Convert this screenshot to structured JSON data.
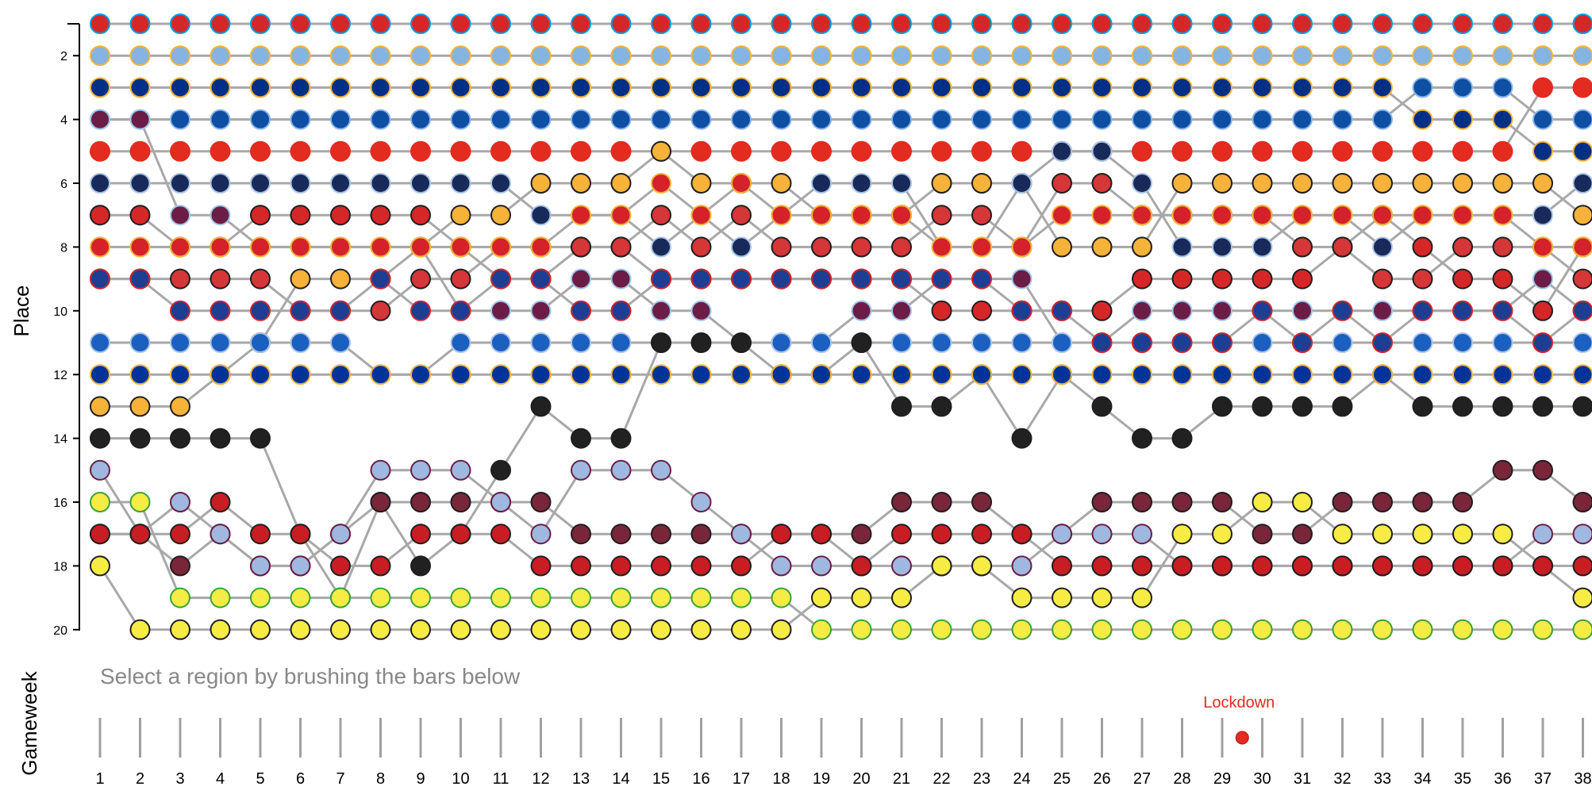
{
  "chart_data": {
    "type": "bump",
    "ylabel": "Place",
    "xlabel": "Gameweek",
    "y_ticks": [
      "2",
      "4",
      "6",
      "8",
      "10",
      "12",
      "14",
      "16",
      "18",
      "20"
    ],
    "ylim": [
      1,
      20
    ],
    "gameweeks": [
      "1",
      "2",
      "3",
      "4",
      "5",
      "6",
      "7",
      "8",
      "9",
      "10",
      "11",
      "12",
      "13",
      "14",
      "15",
      "16",
      "17",
      "18",
      "19",
      "20",
      "21",
      "22",
      "23",
      "24",
      "25",
      "26",
      "27",
      "28",
      "29",
      "30",
      "31",
      "32",
      "33",
      "34",
      "35",
      "36",
      "37",
      "38"
    ],
    "team_styles": [
      {
        "fill": "#d62728",
        "stroke": "#00a0dc"
      },
      {
        "fill": "#86b4e2",
        "stroke": "#f2b53a"
      },
      {
        "fill": "#002f87",
        "stroke": "#f2b53a"
      },
      {
        "fill": "#0e4ea3",
        "stroke": "#8ab4e8"
      },
      {
        "fill": "#e32b1f",
        "stroke": "#e32b1f"
      },
      {
        "fill": "#f7b23a",
        "stroke": "#1f1f1f"
      },
      {
        "fill": "#d62728",
        "stroke": "#1f1f1f"
      },
      {
        "fill": "#182a5a",
        "stroke": "#aac4e4"
      },
      {
        "fill": "#d53638",
        "stroke": "#1f1f1f"
      },
      {
        "fill": "#6c1d45",
        "stroke": "#9ec5e8"
      },
      {
        "fill": "#1b5fc0",
        "stroke": "#aac4e4"
      },
      {
        "fill": "#212121",
        "stroke": "#1f1f1f"
      },
      {
        "fill": "#7a263a",
        "stroke": "#1f1f1f"
      },
      {
        "fill": "#d4212a",
        "stroke": "#f2b53a"
      },
      {
        "fill": "#1c3f94",
        "stroke": "#d4212a"
      },
      {
        "fill": "#9fb8e0",
        "stroke": "#6c1d45"
      },
      {
        "fill": "#f6ec44",
        "stroke": "#1f1f1f"
      },
      {
        "fill": "#c81e23",
        "stroke": "#1f1f1f"
      },
      {
        "fill": "#f6ec44",
        "stroke": "#3e9f3b"
      },
      {
        "fill": "#003399",
        "stroke": "#f2b53a"
      }
    ],
    "ranks": [
      [
        1,
        1,
        1,
        1,
        1,
        1,
        1,
        1,
        1,
        1,
        1,
        1,
        1,
        1,
        1,
        1,
        1,
        1,
        1,
        1,
        1,
        1,
        1,
        1,
        1,
        1,
        1,
        1,
        1,
        1,
        1,
        1,
        1,
        1,
        1,
        1,
        1,
        1
      ],
      [
        2,
        2,
        2,
        2,
        2,
        2,
        2,
        2,
        2,
        2,
        2,
        2,
        2,
        2,
        2,
        2,
        2,
        2,
        2,
        2,
        2,
        2,
        2,
        2,
        2,
        2,
        2,
        2,
        2,
        2,
        2,
        2,
        2,
        2,
        2,
        2,
        2,
        2
      ],
      [
        3,
        3,
        3,
        3,
        3,
        3,
        3,
        3,
        3,
        3,
        3,
        3,
        3,
        3,
        3,
        3,
        3,
        3,
        3,
        3,
        3,
        3,
        3,
        3,
        3,
        3,
        3,
        3,
        3,
        3,
        3,
        3,
        3,
        4,
        4,
        4,
        5,
        5
      ],
      [
        4,
        4,
        4,
        4,
        4,
        4,
        4,
        4,
        4,
        4,
        4,
        4,
        4,
        4,
        4,
        4,
        4,
        4,
        4,
        4,
        4,
        4,
        4,
        4,
        4,
        4,
        4,
        4,
        4,
        4,
        4,
        4,
        4,
        3,
        3,
        3,
        4,
        4
      ],
      [
        5,
        5,
        5,
        5,
        5,
        5,
        5,
        5,
        5,
        5,
        5,
        5,
        5,
        5,
        5,
        5,
        5,
        5,
        5,
        5,
        5,
        5,
        5,
        5,
        5,
        5,
        5,
        5,
        5,
        5,
        5,
        5,
        5,
        5,
        5,
        5,
        3,
        3
      ],
      [
        13,
        13,
        13,
        12,
        11,
        9,
        9,
        9,
        8,
        7,
        7,
        6,
        6,
        6,
        5,
        6,
        6,
        6,
        7,
        7,
        7,
        6,
        6,
        6,
        8,
        8,
        8,
        6,
        6,
        6,
        6,
        6,
        6,
        6,
        6,
        6,
        6,
        7
      ],
      [
        7,
        7,
        8,
        8,
        7,
        7,
        7,
        7,
        7,
        8,
        9,
        9,
        8,
        8,
        9,
        9,
        9,
        9,
        9,
        9,
        9,
        10,
        10,
        10,
        10,
        10,
        9,
        9,
        9,
        9,
        9,
        8,
        7,
        8,
        9,
        9,
        10,
        8
      ],
      [
        6,
        6,
        6,
        6,
        6,
        6,
        6,
        6,
        6,
        6,
        6,
        7,
        7,
        7,
        8,
        7,
        8,
        7,
        6,
        6,
        6,
        8,
        8,
        6,
        5,
        5,
        6,
        8,
        8,
        8,
        7,
        7,
        8,
        7,
        7,
        7,
        7,
        6
      ],
      [
        9,
        9,
        9,
        9,
        9,
        10,
        10,
        10,
        9,
        9,
        8,
        8,
        8,
        8,
        7,
        8,
        7,
        8,
        8,
        8,
        8,
        7,
        7,
        8,
        6,
        6,
        7,
        7,
        7,
        7,
        8,
        8,
        9,
        9,
        8,
        8,
        8,
        9
      ],
      [
        4,
        4,
        7,
        7,
        8,
        8,
        8,
        8,
        8,
        10,
        10,
        10,
        9,
        9,
        10,
        10,
        11,
        11,
        11,
        10,
        10,
        9,
        9,
        9,
        11,
        11,
        10,
        10,
        10,
        10,
        10,
        10,
        10,
        10,
        10,
        10,
        9,
        10
      ],
      [
        11,
        11,
        11,
        11,
        11,
        11,
        11,
        12,
        12,
        11,
        11,
        11,
        11,
        11,
        11,
        11,
        11,
        11,
        11,
        11,
        11,
        11,
        11,
        11,
        11,
        11,
        11,
        11,
        11,
        11,
        11,
        11,
        11,
        11,
        11,
        11,
        11,
        11
      ],
      [
        14,
        14,
        14,
        14,
        14,
        17,
        19,
        16,
        18,
        17,
        15,
        13,
        14,
        14,
        11,
        11,
        11,
        12,
        12,
        11,
        13,
        13,
        12,
        14,
        12,
        13,
        14,
        14,
        13,
        13,
        13,
        13,
        12,
        13,
        13,
        13,
        13,
        13
      ],
      [
        17,
        17,
        18,
        17,
        18,
        18,
        17,
        16,
        16,
        16,
        16,
        16,
        17,
        17,
        17,
        17,
        17,
        17,
        17,
        17,
        16,
        16,
        16,
        17,
        17,
        16,
        16,
        16,
        16,
        17,
        17,
        16,
        16,
        16,
        16,
        15,
        15,
        16
      ],
      [
        8,
        8,
        8,
        8,
        8,
        8,
        8,
        8,
        8,
        8,
        8,
        8,
        7,
        7,
        6,
        7,
        6,
        7,
        7,
        7,
        7,
        8,
        8,
        8,
        7,
        7,
        7,
        7,
        7,
        7,
        7,
        7,
        7,
        7,
        7,
        7,
        8,
        8
      ],
      [
        9,
        9,
        10,
        10,
        10,
        10,
        10,
        9,
        10,
        10,
        9,
        9,
        10,
        10,
        9,
        9,
        9,
        9,
        9,
        9,
        9,
        9,
        9,
        10,
        10,
        11,
        11,
        11,
        11,
        10,
        11,
        10,
        11,
        10,
        10,
        10,
        11,
        10
      ],
      [
        15,
        17,
        16,
        17,
        18,
        18,
        17,
        15,
        15,
        15,
        16,
        17,
        15,
        15,
        15,
        16,
        17,
        18,
        18,
        18,
        18,
        18,
        18,
        18,
        17,
        17,
        17,
        18,
        18,
        18,
        18,
        18,
        18,
        18,
        18,
        18,
        17,
        17
      ],
      [
        18,
        20,
        20,
        20,
        20,
        20,
        20,
        20,
        20,
        20,
        20,
        20,
        20,
        20,
        20,
        20,
        20,
        20,
        19,
        19,
        19,
        18,
        18,
        19,
        19,
        19,
        19,
        17,
        17,
        16,
        16,
        17,
        17,
        17,
        17,
        17,
        18,
        19
      ],
      [
        17,
        17,
        17,
        16,
        17,
        17,
        18,
        18,
        17,
        17,
        17,
        18,
        18,
        18,
        18,
        18,
        18,
        17,
        17,
        18,
        17,
        17,
        17,
        17,
        18,
        18,
        18,
        18,
        18,
        18,
        18,
        18,
        18,
        18,
        18,
        18,
        18,
        18
      ],
      [
        16,
        16,
        19,
        19,
        19,
        19,
        19,
        19,
        19,
        19,
        19,
        19,
        19,
        19,
        19,
        19,
        19,
        19,
        20,
        20,
        20,
        20,
        20,
        20,
        20,
        20,
        20,
        20,
        20,
        20,
        20,
        20,
        20,
        20,
        20,
        20,
        20,
        20
      ],
      [
        12,
        12,
        12,
        12,
        12,
        12,
        12,
        12,
        12,
        12,
        12,
        12,
        12,
        12,
        12,
        12,
        12,
        12,
        12,
        12,
        12,
        12,
        12,
        12,
        12,
        12,
        12,
        12,
        12,
        12,
        12,
        12,
        12,
        12,
        12,
        12,
        12,
        12
      ]
    ],
    "annotations": [
      {
        "label": "Lockdown",
        "after_gameweek": "29"
      }
    ],
    "brush_hint": "Select a region by brushing the bars below",
    "grid": false
  }
}
